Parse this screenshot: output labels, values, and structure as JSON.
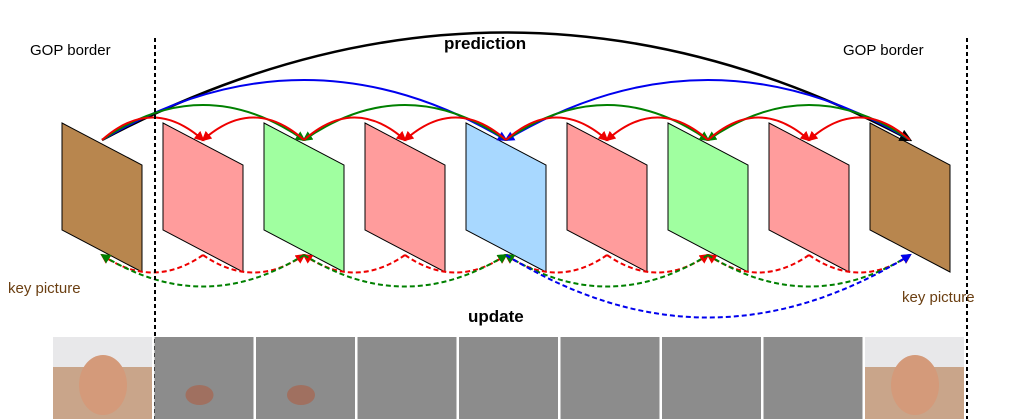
{
  "gop_borders": [
    "GOP border",
    "GOP border"
  ],
  "prediction_label": "prediction",
  "update_label": "update",
  "key_pictures": [
    "key picture",
    "key picture"
  ]
}
